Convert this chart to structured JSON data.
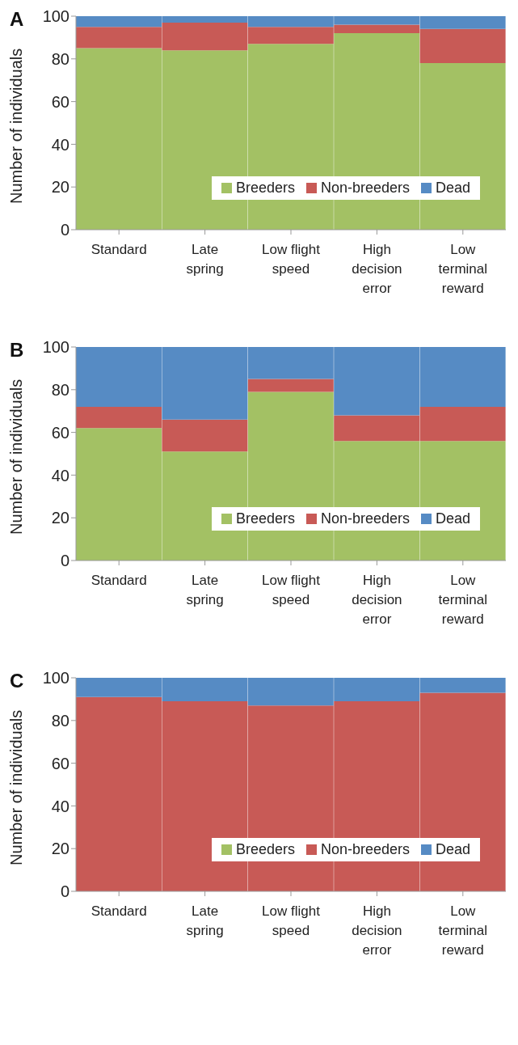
{
  "chart_data": [
    {
      "type": "bar",
      "title": "A",
      "ylabel": "Number of individuals",
      "stacked": true,
      "legend": "bottom",
      "grid": false,
      "categories": [
        "Standard",
        "Late spring",
        "Low flight speed",
        "High decision error",
        "Low terminal reward"
      ],
      "ylim": [
        0,
        100
      ],
      "yticks": [
        0,
        20,
        40,
        60,
        80,
        100
      ],
      "series": [
        {
          "name": "Breeders",
          "color": "#a3c164",
          "values": [
            85,
            84,
            87,
            92,
            78
          ]
        },
        {
          "name": "Non-breeders",
          "color": "#c85a56",
          "values": [
            10,
            13,
            8,
            4,
            16
          ]
        },
        {
          "name": "Dead",
          "color": "#568bc4",
          "values": [
            5,
            3,
            5,
            4,
            6
          ]
        }
      ]
    },
    {
      "type": "bar",
      "title": "B",
      "ylabel": "Number of individuals",
      "stacked": true,
      "legend": "bottom",
      "grid": false,
      "categories": [
        "Standard",
        "Late spring",
        "Low flight speed",
        "High decision error",
        "Low terminal reward"
      ],
      "ylim": [
        0,
        100
      ],
      "yticks": [
        0,
        20,
        40,
        60,
        80,
        100
      ],
      "series": [
        {
          "name": "Breeders",
          "color": "#a3c164",
          "values": [
            62,
            51,
            79,
            56,
            56
          ]
        },
        {
          "name": "Non-breeders",
          "color": "#c85a56",
          "values": [
            10,
            15,
            6,
            12,
            16
          ]
        },
        {
          "name": "Dead",
          "color": "#568bc4",
          "values": [
            28,
            34,
            15,
            32,
            28
          ]
        }
      ]
    },
    {
      "type": "bar",
      "title": "C",
      "ylabel": "Number of individuals",
      "stacked": true,
      "legend": "bottom",
      "grid": false,
      "categories": [
        "Standard",
        "Late spring",
        "Low flight speed",
        "High decision error",
        "Low terminal reward"
      ],
      "ylim": [
        0,
        100
      ],
      "yticks": [
        0,
        20,
        40,
        60,
        80,
        100
      ],
      "series": [
        {
          "name": "Breeders",
          "color": "#a3c164",
          "values": [
            0,
            0,
            0,
            0,
            0
          ]
        },
        {
          "name": "Non-breeders",
          "color": "#c85a56",
          "values": [
            91,
            89,
            87,
            89,
            93
          ]
        },
        {
          "name": "Dead",
          "color": "#568bc4",
          "values": [
            9,
            11,
            13,
            11,
            7
          ]
        }
      ]
    }
  ]
}
